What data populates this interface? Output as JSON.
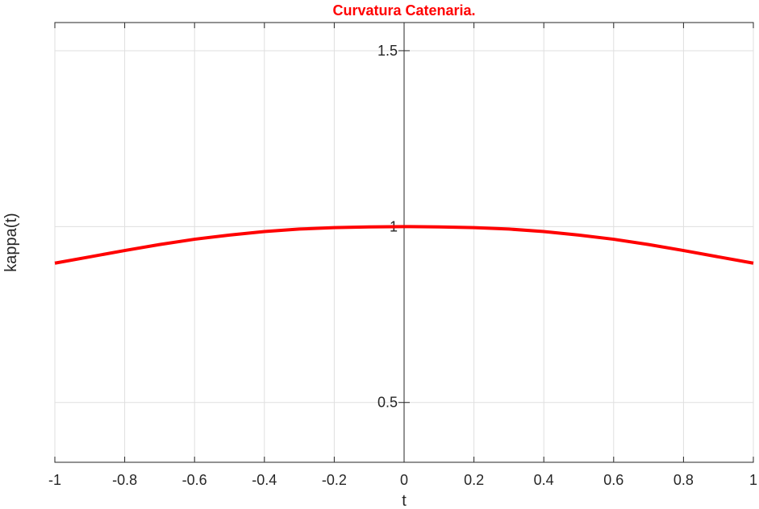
{
  "chart_data": {
    "type": "line",
    "title": "Curvatura Catenaria.",
    "title_color": "#ff0000",
    "xlabel": "t",
    "ylabel": "kappa(t)",
    "xlim": [
      -1,
      1
    ],
    "ylim": [
      0.33,
      1.58
    ],
    "x_ticks": [
      -1,
      -0.8,
      -0.6,
      -0.4,
      -0.2,
      0,
      0.2,
      0.4,
      0.6,
      0.8,
      1
    ],
    "x_tick_labels": [
      "-1",
      "-0.8",
      "-0.6",
      "-0.4",
      "-0.2",
      "0",
      "0.2",
      "0.4",
      "0.6",
      "0.8",
      "1"
    ],
    "y_ticks": [
      0.5,
      1,
      1.5
    ],
    "y_tick_labels": [
      "0.5",
      "1",
      "1.5"
    ],
    "grid": true,
    "axis_location": "origin",
    "series": [
      {
        "color": "#ff0000",
        "x": [
          -1,
          -0.9,
          -0.8,
          -0.7,
          -0.6,
          -0.5,
          -0.4,
          -0.3,
          -0.2,
          -0.1,
          0,
          0.1,
          0.2,
          0.3,
          0.4,
          0.5,
          0.6,
          0.7,
          0.8,
          0.9,
          1
        ],
        "y": [
          0.896,
          0.914,
          0.932,
          0.949,
          0.964,
          0.976,
          0.986,
          0.993,
          0.997,
          0.999,
          1.0,
          0.999,
          0.997,
          0.993,
          0.986,
          0.976,
          0.964,
          0.949,
          0.932,
          0.914,
          0.896
        ]
      }
    ]
  }
}
